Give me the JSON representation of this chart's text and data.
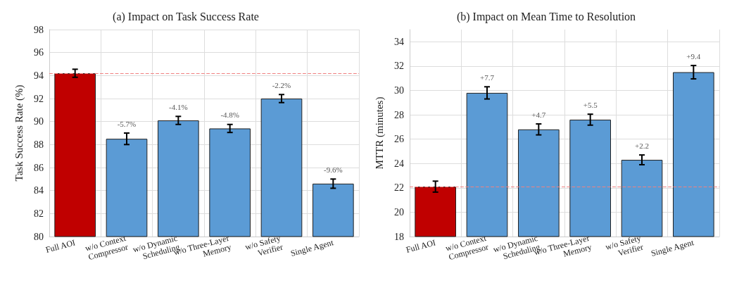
{
  "chart_data": [
    {
      "type": "bar",
      "title": "(a) Impact on Task Success Rate",
      "ylabel": "Task Success Rate (%)",
      "categories": [
        "Full AOI",
        "w/o Context\nCompressor",
        "w/o Dynamic\nScheduling",
        "w/o Three-Layer\nMemory",
        "w/o Safety\nVerifier",
        "Single Agent"
      ],
      "values": [
        94.2,
        88.5,
        90.1,
        89.4,
        92.0,
        84.6
      ],
      "errors": [
        0.35,
        0.5,
        0.35,
        0.35,
        0.35,
        0.4
      ],
      "colors": [
        "#c00000",
        "#5b9bd5",
        "#5b9bd5",
        "#5b9bd5",
        "#5b9bd5",
        "#5b9bd5"
      ],
      "annotations": [
        {
          "text": "-5.7%",
          "x": "w/o Context\nCompressor",
          "y": 89.0
        },
        {
          "text": "-4.1%",
          "x": "w/o Dynamic\nScheduling",
          "y": 90.45
        },
        {
          "text": "-4.8%",
          "x": "w/o Three-Layer\nMemory",
          "y": 89.75
        },
        {
          "text": "-2.2%",
          "x": "w/o Safety\nVerifier",
          "y": 92.35
        },
        {
          "text": "-9.6%",
          "x": "Single Agent",
          "y": 85.0
        }
      ],
      "ylim": [
        80,
        98
      ],
      "yticks": [
        80,
        82,
        84,
        86,
        88,
        90,
        92,
        94,
        96,
        98
      ],
      "grid": true,
      "ref_lines": [
        {
          "axis": "y",
          "value": 94.2,
          "color": "#f08080",
          "line_style": "dashed"
        }
      ]
    },
    {
      "type": "bar",
      "title": "(b) Impact on Mean Time to Resolution",
      "ylabel": "MTTR (minutes)",
      "categories": [
        "Full AOI",
        "w/o Context\nCompressor",
        "w/o Dynamic\nScheduling",
        "w/o Three-Layer\nMemory",
        "w/o Safety\nVerifier",
        "Single Agent"
      ],
      "values": [
        22.1,
        29.8,
        26.8,
        27.6,
        24.3,
        31.5
      ],
      "errors": [
        0.45,
        0.5,
        0.45,
        0.45,
        0.4,
        0.55
      ],
      "colors": [
        "#c00000",
        "#5b9bd5",
        "#5b9bd5",
        "#5b9bd5",
        "#5b9bd5",
        "#5b9bd5"
      ],
      "annotations": [
        {
          "text": "+7.7",
          "x": "w/o Context\nCompressor",
          "y": 30.3
        },
        {
          "text": "+4.7",
          "x": "w/o Dynamic\nScheduling",
          "y": 27.25
        },
        {
          "text": "+5.5",
          "x": "w/o Three-Layer\nMemory",
          "y": 28.05
        },
        {
          "text": "+2.2",
          "x": "w/o Safety\nVerifier",
          "y": 24.7
        },
        {
          "text": "+9.4",
          "x": "Single Agent",
          "y": 32.05
        }
      ],
      "ylim": [
        18,
        35
      ],
      "yticks": [
        18,
        20,
        22,
        24,
        26,
        28,
        30,
        32,
        34
      ],
      "grid": true,
      "ref_lines": [
        {
          "axis": "y",
          "value": 22.1,
          "color": "#f08080",
          "line_style": "dashed"
        }
      ]
    }
  ]
}
